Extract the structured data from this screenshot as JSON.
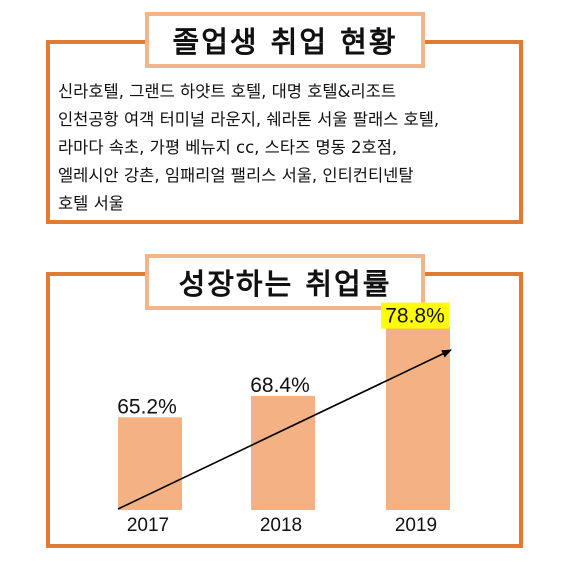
{
  "section1": {
    "title": "졸업생 취업 현황",
    "lines": [
      "신라호텔, 그랜드 하얏트 호텔, 대명 호텔&리조트",
      "인천공항 여객 터미널 라운지, 쉐라톤 서울 팔래스 호텔,",
      "라마다 속초, 가평 베뉴지 cc, 스타즈 명동 2호점,",
      "엘레시안 강촌, 임패리얼 팰리스 서울, 인티컨티넨탈",
      "호텔 서울"
    ]
  },
  "section2": {
    "title": "성장하는 취업률"
  },
  "chart_data": {
    "type": "bar",
    "categories": [
      "2017",
      "2018",
      "2019"
    ],
    "values": [
      65.2,
      68.4,
      78.8
    ],
    "value_labels": [
      "65.2%",
      "68.4%",
      "78.8%"
    ],
    "highlight_index": 2,
    "trend_arrow": true,
    "colors": {
      "bar": "#f4b183",
      "highlight": "#ffff00",
      "frame": "#e07b35"
    }
  }
}
